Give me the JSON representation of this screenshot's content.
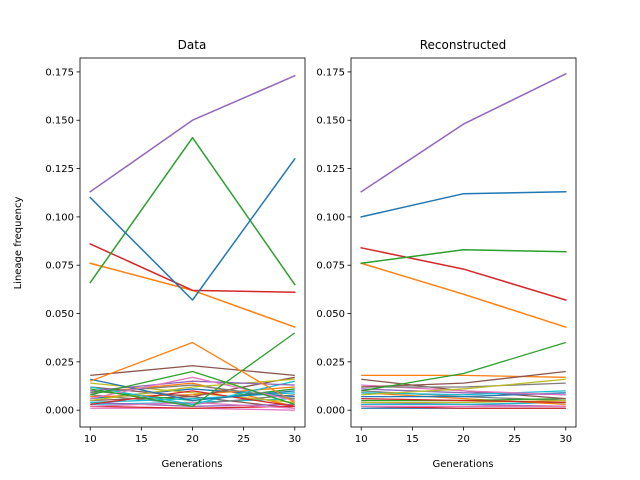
{
  "figure": {
    "ylabel": "Lineage frequency"
  },
  "chart_data": [
    {
      "type": "line",
      "title": "Data",
      "xlabel": "Generations",
      "ylabel": "Lineage frequency",
      "x": [
        10,
        20,
        30
      ],
      "xlim": [
        9.0,
        31.0
      ],
      "ylim": [
        -0.0087,
        0.1822
      ],
      "xticks": [
        10,
        15,
        20,
        25,
        30
      ],
      "yticks": [
        0.0,
        0.025,
        0.05,
        0.075,
        0.1,
        0.125,
        0.15,
        0.175
      ],
      "grid": false,
      "series": [
        {
          "color": "#9467bd",
          "values": [
            0.113,
            0.15,
            0.173
          ]
        },
        {
          "color": "#1f77b4",
          "values": [
            0.11,
            0.057,
            0.13
          ]
        },
        {
          "color": "#2ca02c",
          "values": [
            0.066,
            0.141,
            0.065
          ]
        },
        {
          "color": "#d62728",
          "values": [
            0.086,
            0.062,
            0.061
          ]
        },
        {
          "color": "#ff7f0e",
          "values": [
            0.076,
            0.062,
            0.043
          ]
        },
        {
          "color": "#ff7f0e",
          "values": [
            0.015,
            0.035,
            0.004
          ]
        },
        {
          "color": "#2ca02c",
          "values": [
            0.011,
            0.002,
            0.04
          ]
        },
        {
          "color": "#8c564b",
          "values": [
            0.018,
            0.023,
            0.018
          ]
        },
        {
          "color": "#2ca02c",
          "values": [
            0.008,
            0.02,
            0.003
          ]
        },
        {
          "color": "#e377c2",
          "values": [
            0.006,
            0.017,
            0.005
          ]
        },
        {
          "color": "#9467bd",
          "values": [
            0.01,
            0.015,
            0.013
          ]
        },
        {
          "color": "#1f77b4",
          "values": [
            0.016,
            0.005,
            0.01
          ]
        },
        {
          "color": "#17becf",
          "values": [
            0.012,
            0.003,
            0.015
          ]
        },
        {
          "color": "#bcbd22",
          "values": [
            0.005,
            0.012,
            0.016
          ]
        },
        {
          "color": "#7f7f7f",
          "values": [
            0.009,
            0.013,
            0.006
          ]
        },
        {
          "color": "#d62728",
          "values": [
            0.003,
            0.01,
            0.002
          ]
        },
        {
          "color": "#8c564b",
          "values": [
            0.012,
            0.007,
            0.017
          ]
        },
        {
          "color": "#ff7f0e",
          "values": [
            0.007,
            0.008,
            0.012
          ]
        },
        {
          "color": "#17becf",
          "values": [
            0.004,
            0.006,
            0.009
          ]
        },
        {
          "color": "#e377c2",
          "values": [
            0.002,
            0.004,
            0.001
          ]
        },
        {
          "color": "#bcbd22",
          "values": [
            0.014,
            0.009,
            0.004
          ]
        },
        {
          "color": "#1f77b4",
          "values": [
            0.006,
            0.011,
            0.007
          ]
        },
        {
          "color": "#2ca02c",
          "values": [
            0.01,
            0.005,
            0.011
          ]
        },
        {
          "color": "#9467bd",
          "values": [
            0.004,
            0.002,
            0.003
          ]
        },
        {
          "color": "#7f7f7f",
          "values": [
            0.008,
            0.003,
            0.008
          ]
        },
        {
          "color": "#d62728",
          "values": [
            0.002,
            0.001,
            0.002
          ]
        },
        {
          "color": "#8c564b",
          "values": [
            0.005,
            0.007,
            0.001
          ]
        },
        {
          "color": "#17becf",
          "values": [
            0.003,
            0.004,
            0.006
          ]
        },
        {
          "color": "#e377c2",
          "values": [
            0.001,
            0.001,
            0.0
          ]
        },
        {
          "color": "#ff7f0e",
          "values": [
            0.009,
            0.014,
            0.002
          ]
        }
      ]
    },
    {
      "type": "line",
      "title": "Reconstructed",
      "xlabel": "Generations",
      "ylabel": "",
      "x": [
        10,
        20,
        30
      ],
      "xlim": [
        9.0,
        31.0
      ],
      "ylim": [
        -0.0087,
        0.1822
      ],
      "xticks": [
        10,
        15,
        20,
        25,
        30
      ],
      "yticks": [
        0.0,
        0.025,
        0.05,
        0.075,
        0.1,
        0.125,
        0.15,
        0.175
      ],
      "grid": false,
      "series": [
        {
          "color": "#9467bd",
          "values": [
            0.113,
            0.148,
            0.174
          ]
        },
        {
          "color": "#1f77b4",
          "values": [
            0.1,
            0.112,
            0.113
          ]
        },
        {
          "color": "#2ca02c",
          "values": [
            0.076,
            0.083,
            0.082
          ]
        },
        {
          "color": "#d62728",
          "values": [
            0.084,
            0.073,
            0.057
          ]
        },
        {
          "color": "#ff7f0e",
          "values": [
            0.076,
            0.06,
            0.043
          ]
        },
        {
          "color": "#2ca02c",
          "values": [
            0.01,
            0.019,
            0.035
          ]
        },
        {
          "color": "#8c564b",
          "values": [
            0.012,
            0.014,
            0.02
          ]
        },
        {
          "color": "#ff7f0e",
          "values": [
            0.018,
            0.018,
            0.017
          ]
        },
        {
          "color": "#bcbd22",
          "values": [
            0.008,
            0.011,
            0.016
          ]
        },
        {
          "color": "#7f7f7f",
          "values": [
            0.012,
            0.012,
            0.014
          ]
        },
        {
          "color": "#e377c2",
          "values": [
            0.013,
            0.01,
            0.008
          ]
        },
        {
          "color": "#17becf",
          "values": [
            0.009,
            0.008,
            0.01
          ]
        },
        {
          "color": "#9467bd",
          "values": [
            0.011,
            0.009,
            0.008
          ]
        },
        {
          "color": "#1f77b4",
          "values": [
            0.007,
            0.007,
            0.009
          ]
        },
        {
          "color": "#d62728",
          "values": [
            0.006,
            0.005,
            0.004
          ]
        },
        {
          "color": "#8c564b",
          "values": [
            0.016,
            0.01,
            0.006
          ]
        },
        {
          "color": "#2ca02c",
          "values": [
            0.005,
            0.005,
            0.006
          ]
        },
        {
          "color": "#ff7f0e",
          "values": [
            0.009,
            0.006,
            0.003
          ]
        },
        {
          "color": "#bcbd22",
          "values": [
            0.004,
            0.004,
            0.005
          ]
        },
        {
          "color": "#17becf",
          "values": [
            0.003,
            0.003,
            0.004
          ]
        },
        {
          "color": "#e377c2",
          "values": [
            0.002,
            0.002,
            0.002
          ]
        },
        {
          "color": "#7f7f7f",
          "values": [
            0.01,
            0.007,
            0.005
          ]
        },
        {
          "color": "#d62728",
          "values": [
            0.002,
            0.001,
            0.001
          ]
        },
        {
          "color": "#9467bd",
          "values": [
            0.004,
            0.003,
            0.002
          ]
        },
        {
          "color": "#1f77b4",
          "values": [
            0.001,
            0.001,
            0.001
          ]
        }
      ]
    }
  ]
}
